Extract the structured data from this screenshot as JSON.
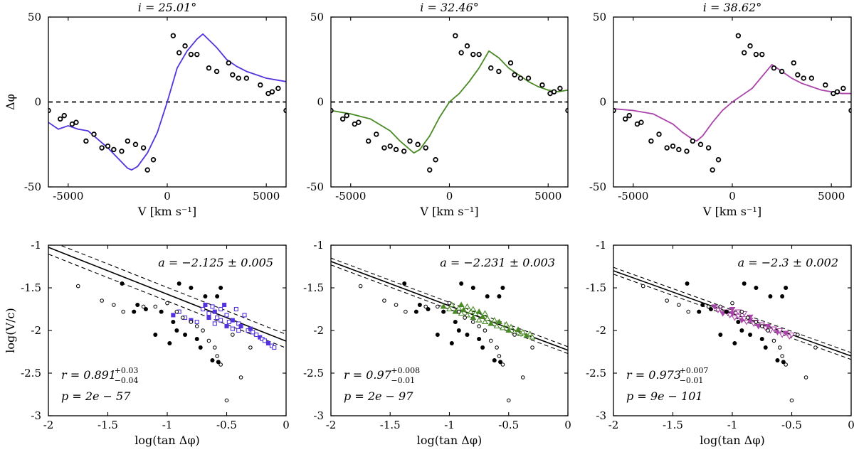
{
  "figure": {
    "name": "phase-shift-vs-velocity-panels"
  },
  "chart_data": [
    {
      "type": "line",
      "panel": "top-1",
      "title": "i = 25.01°",
      "xlabel": "V [km s⁻¹]",
      "ylabel": "Δφ",
      "xlim": [
        -6000,
        6000
      ],
      "ylim": [
        -50,
        50
      ],
      "xticks": [
        -5000,
        0,
        5000
      ],
      "yticks": [
        -50,
        0,
        50
      ],
      "xtick_labels": [
        "-5000",
        "0",
        "5000"
      ],
      "ytick_labels": [
        "-50",
        "0",
        "50"
      ],
      "zero_line": 0,
      "color": "#5533dd",
      "model": {
        "x": [
          -6000,
          -5500,
          -5000,
          -4500,
          -4000,
          -3500,
          -3000,
          -2500,
          -2000,
          -1800,
          -1500,
          -1000,
          -500,
          0,
          500,
          1000,
          1500,
          1800,
          2500,
          3000,
          3500,
          4000,
          4500,
          5000,
          5500,
          6000
        ],
        "y": [
          -12,
          -16,
          -14,
          -16,
          -17,
          -22,
          -27,
          -33,
          -39,
          -40,
          -38,
          -30,
          -18,
          0,
          20,
          30,
          37,
          40,
          32,
          25,
          21,
          18,
          16,
          14,
          13,
          12
        ]
      },
      "observed": {
        "x": [
          -6000,
          -5400,
          -5200,
          -4800,
          -4600,
          -4100,
          -3700,
          -3300,
          -3000,
          -2700,
          -2300,
          -2000,
          -1600,
          -1200,
          -1000,
          -700,
          300,
          600,
          900,
          1200,
          1500,
          2100,
          2500,
          3100,
          3300,
          3600,
          4000,
          4700,
          5100,
          5300,
          5600,
          6000
        ],
        "y": [
          -5,
          -10,
          -8,
          -13,
          -12,
          -23,
          -19,
          -27,
          -26,
          -28,
          -29,
          -23,
          -25,
          -27,
          -40,
          -34,
          39,
          29,
          33,
          28,
          28,
          20,
          18,
          23,
          16,
          14,
          14,
          10,
          5,
          6,
          8,
          -5
        ]
      }
    },
    {
      "type": "line",
      "panel": "top-2",
      "title": "i = 32.46°",
      "xlabel": "V [km s⁻¹]",
      "ylabel": "",
      "xlim": [
        -6000,
        6000
      ],
      "ylim": [
        -50,
        50
      ],
      "xticks": [
        -5000,
        0,
        5000
      ],
      "yticks": [
        -50,
        0,
        50
      ],
      "xtick_labels": [
        "-5000",
        "0",
        "5000"
      ],
      "ytick_labels": [
        "-50",
        "0",
        "50"
      ],
      "zero_line": 0,
      "color": "#4a8a25",
      "model": {
        "x": [
          -6000,
          -5000,
          -4000,
          -3000,
          -2500,
          -2000,
          -1800,
          -1500,
          -1000,
          -500,
          0,
          500,
          1000,
          1500,
          2000,
          2500,
          3000,
          3500,
          4000,
          4500,
          5000,
          5500,
          6000
        ],
        "y": [
          -5,
          -7,
          -10,
          -17,
          -23,
          -28,
          -30,
          -28,
          -20,
          -9,
          0,
          5,
          12,
          20,
          30,
          26,
          20,
          16,
          12,
          9,
          7,
          6,
          7
        ]
      },
      "observed": {
        "x": [
          -6000,
          -5400,
          -5200,
          -4800,
          -4600,
          -4100,
          -3700,
          -3300,
          -3000,
          -2700,
          -2300,
          -2000,
          -1600,
          -1200,
          -1000,
          -700,
          300,
          600,
          900,
          1200,
          1500,
          2100,
          2500,
          3100,
          3300,
          3600,
          4000,
          4700,
          5100,
          5300,
          5600,
          6000
        ],
        "y": [
          -5,
          -10,
          -8,
          -13,
          -12,
          -23,
          -19,
          -27,
          -26,
          -28,
          -29,
          -23,
          -25,
          -27,
          -40,
          -34,
          39,
          29,
          33,
          28,
          28,
          20,
          18,
          23,
          16,
          14,
          14,
          10,
          5,
          6,
          8,
          -5
        ]
      }
    },
    {
      "type": "line",
      "panel": "top-3",
      "title": "i = 38.62°",
      "xlabel": "V [km s⁻¹]",
      "ylabel": "",
      "xlim": [
        -6000,
        6000
      ],
      "ylim": [
        -50,
        50
      ],
      "xticks": [
        -5000,
        0,
        5000
      ],
      "yticks": [
        -50,
        0,
        50
      ],
      "xtick_labels": [
        "-5000",
        "0",
        "5000"
      ],
      "ytick_labels": [
        "-50",
        "0",
        "50"
      ],
      "zero_line": 0,
      "color": "#aa44aa",
      "model": {
        "x": [
          -6000,
          -5000,
          -4000,
          -3500,
          -3000,
          -2500,
          -2000,
          -1800,
          -1500,
          -1000,
          -500,
          0,
          500,
          1000,
          1500,
          2000,
          2500,
          3000,
          3500,
          4000,
          4500,
          5000,
          5500,
          6000
        ],
        "y": [
          -4,
          -5,
          -7,
          -10,
          -13,
          -18,
          -22,
          -23,
          -20,
          -12,
          -5,
          0,
          4,
          8,
          15,
          22,
          18,
          14,
          11,
          9,
          7,
          6,
          5,
          5
        ]
      },
      "observed": {
        "x": [
          -6000,
          -5400,
          -5200,
          -4800,
          -4600,
          -4100,
          -3700,
          -3300,
          -3000,
          -2700,
          -2300,
          -2000,
          -1600,
          -1200,
          -1000,
          -700,
          300,
          600,
          900,
          1200,
          1500,
          2100,
          2500,
          3100,
          3300,
          3600,
          4000,
          4700,
          5100,
          5300,
          5600,
          6000
        ],
        "y": [
          -5,
          -10,
          -8,
          -13,
          -12,
          -23,
          -19,
          -27,
          -26,
          -28,
          -29,
          -23,
          -25,
          -27,
          -40,
          -34,
          39,
          29,
          33,
          28,
          28,
          20,
          18,
          23,
          16,
          14,
          14,
          10,
          5,
          6,
          8,
          -5
        ]
      }
    },
    {
      "type": "scatter",
      "panel": "bottom-1",
      "xlabel": "log(tan Δφ)",
      "ylabel": "log(V/c)",
      "xlim": [
        -2,
        0
      ],
      "ylim": [
        -3,
        -1
      ],
      "xticks": [
        -2,
        -1.5,
        -1,
        -0.5,
        0
      ],
      "yticks": [
        -3,
        -2.5,
        -2,
        -1.5,
        -1
      ],
      "xtick_labels": [
        "-2",
        "-1.5",
        "-1",
        "-0.5",
        "0"
      ],
      "ytick_labels": [
        "-3",
        "-2.5",
        "-2",
        "-1.5",
        "-1"
      ],
      "color": "#5533dd",
      "fit": {
        "slope": -0.55,
        "intercept": -2.125,
        "band": 0.08
      },
      "annotations": {
        "a": "a = −2.125 ± 0.005",
        "r_main": "r = 0.891",
        "r_plus": "+0.03",
        "r_minus": "−0.04",
        "p": "p = 2e − 57"
      },
      "filled_points": {
        "x": [
          -1.38,
          -1.25,
          -1.18,
          -1.05,
          -0.95,
          -0.92,
          -0.85,
          -0.75,
          -0.72,
          -0.62,
          -0.58,
          -0.55,
          -0.9,
          -0.98,
          -1.1,
          -1.28,
          -0.68,
          -0.8,
          -0.57
        ],
        "y": [
          -1.45,
          -1.7,
          -1.75,
          -1.78,
          -1.9,
          -2.0,
          -2.05,
          -2.1,
          -2.2,
          -2.35,
          -1.6,
          -1.5,
          -1.45,
          -2.15,
          -2.05,
          -1.78,
          -1.6,
          -1.5,
          -2.37
        ]
      },
      "open_points": {
        "x": [
          -1.75,
          -1.55,
          -1.45,
          -1.37,
          -1.2,
          -1.1,
          -1.0,
          -0.92,
          -0.87,
          -0.8,
          -0.75,
          -0.7,
          -0.65,
          -0.6,
          -0.58,
          -0.55,
          -0.5,
          -0.45,
          -0.38,
          -0.3
        ],
        "y": [
          -1.48,
          -1.65,
          -1.7,
          -1.78,
          -1.72,
          -1.72,
          -1.68,
          -1.78,
          -1.85,
          -1.9,
          -1.95,
          -2.0,
          -2.12,
          -2.2,
          -2.3,
          -2.4,
          -2.82,
          -2.05,
          -2.55,
          -2.2
        ]
      },
      "model_points": {
        "x": [
          -0.95,
          -0.9,
          -0.85,
          -0.8,
          -0.75,
          -0.7,
          -0.68,
          -0.65,
          -0.62,
          -0.6,
          -0.58,
          -0.55,
          -0.52,
          -0.5,
          -0.48,
          -0.45,
          -0.42,
          -0.4,
          -0.38,
          -0.35,
          -0.32,
          -0.3,
          -0.28,
          -0.25,
          -0.22,
          -0.2,
          -0.18,
          -0.15,
          -0.12,
          -0.1,
          -0.65,
          -0.6,
          -0.55,
          -0.5,
          -0.45,
          -0.4
        ],
        "y": [
          -1.82,
          -1.78,
          -1.85,
          -1.88,
          -1.9,
          -1.75,
          -1.7,
          -1.8,
          -1.72,
          -1.78,
          -1.85,
          -1.75,
          -1.7,
          -1.82,
          -1.9,
          -1.88,
          -1.75,
          -1.92,
          -1.95,
          -1.82,
          -2.0,
          -1.98,
          -2.02,
          -2.05,
          -2.08,
          -2.1,
          -2.12,
          -2.15,
          -2.18,
          -2.2,
          -1.85,
          -1.92,
          -1.88,
          -1.95,
          -1.98,
          -2.0
        ]
      }
    },
    {
      "type": "scatter",
      "panel": "bottom-2",
      "xlabel": "log(tan Δφ)",
      "ylabel": "",
      "xlim": [
        -2,
        0
      ],
      "ylim": [
        -3,
        -1
      ],
      "xticks": [
        -2,
        -1.5,
        -1,
        -0.5,
        0
      ],
      "yticks": [
        -3,
        -2.5,
        -2,
        -1.5,
        -1
      ],
      "xtick_labels": [
        "-2",
        "-1.5",
        "-1",
        "-0.5",
        "0"
      ],
      "ytick_labels": [
        "-3",
        "-2.5",
        "-2",
        "-1.5",
        "-1"
      ],
      "color": "#4a8a25",
      "fit": {
        "slope": -0.52,
        "intercept": -2.231,
        "band": 0.04
      },
      "annotations": {
        "a": "a = −2.231 ± 0.003",
        "r_main": "r = 0.97",
        "r_plus": "+0.008",
        "r_minus": "−0.01",
        "p": "p = 2e − 97"
      },
      "filled_points": {
        "x": [
          -1.38,
          -1.25,
          -1.18,
          -1.05,
          -0.95,
          -0.92,
          -0.85,
          -0.75,
          -0.72,
          -0.62,
          -0.58,
          -0.55,
          -0.9,
          -0.98,
          -1.1,
          -1.28,
          -0.68,
          -0.8,
          -0.57
        ],
        "y": [
          -1.45,
          -1.7,
          -1.75,
          -1.78,
          -1.9,
          -2.0,
          -2.05,
          -2.1,
          -2.2,
          -2.35,
          -1.6,
          -1.5,
          -1.45,
          -2.15,
          -2.05,
          -1.78,
          -1.6,
          -1.5,
          -2.37
        ]
      },
      "open_points": {
        "x": [
          -1.75,
          -1.55,
          -1.45,
          -1.37,
          -1.2,
          -1.1,
          -1.0,
          -0.92,
          -0.87,
          -0.8,
          -0.75,
          -0.7,
          -0.65,
          -0.6,
          -0.58,
          -0.55,
          -0.5,
          -0.45,
          -0.38,
          -0.3
        ],
        "y": [
          -1.48,
          -1.65,
          -1.7,
          -1.78,
          -1.72,
          -1.72,
          -1.68,
          -1.78,
          -1.85,
          -1.9,
          -1.95,
          -2.0,
          -2.12,
          -2.2,
          -2.3,
          -2.4,
          -2.82,
          -2.05,
          -2.55,
          -2.2
        ]
      },
      "model_points": {
        "x": [
          -1.05,
          -1.0,
          -0.98,
          -0.95,
          -0.92,
          -0.9,
          -0.88,
          -0.85,
          -0.82,
          -0.8,
          -0.78,
          -0.75,
          -0.72,
          -0.7,
          -0.68,
          -0.65,
          -0.62,
          -0.6,
          -0.58,
          -0.55,
          -0.52,
          -0.5,
          -0.48,
          -0.45,
          -0.42,
          -0.4,
          -0.38,
          -0.35,
          -0.32,
          -0.3,
          -0.9,
          -0.85,
          -0.8,
          -0.75,
          -0.7
        ],
        "y": [
          -1.72,
          -1.75,
          -1.7,
          -1.78,
          -1.74,
          -1.8,
          -1.76,
          -1.82,
          -1.78,
          -1.85,
          -1.8,
          -1.88,
          -1.84,
          -1.9,
          -1.86,
          -1.92,
          -1.88,
          -1.95,
          -1.9,
          -1.97,
          -1.93,
          -2.0,
          -1.96,
          -2.02,
          -1.99,
          -2.04,
          -2.02,
          -2.06,
          -2.04,
          -2.08,
          -1.7,
          -1.72,
          -1.75,
          -1.78,
          -1.8
        ]
      }
    },
    {
      "type": "scatter",
      "panel": "bottom-3",
      "xlabel": "log(tan Δφ)",
      "ylabel": "",
      "xlim": [
        -2,
        0
      ],
      "ylim": [
        -3,
        -1
      ],
      "xticks": [
        -2,
        -1.5,
        -1,
        -0.5,
        0
      ],
      "yticks": [
        -3,
        -2.5,
        -2,
        -1.5,
        -1
      ],
      "xtick_labels": [
        "-2",
        "-1.5",
        "-1",
        "-0.5",
        "0"
      ],
      "ytick_labels": [
        "-3",
        "-2.5",
        "-2",
        "-1.5",
        "-1"
      ],
      "color": "#aa44aa",
      "fit": {
        "slope": -0.5,
        "intercept": -2.3,
        "band": 0.04
      },
      "annotations": {
        "a": "a = −2.3 ± 0.002",
        "r_main": "r = 0.973",
        "r_plus": "+0.007",
        "r_minus": "−0.01",
        "p": "p = 9e − 101"
      },
      "filled_points": {
        "x": [
          -1.38,
          -1.25,
          -1.18,
          -1.05,
          -0.95,
          -0.92,
          -0.85,
          -0.75,
          -0.72,
          -0.62,
          -0.58,
          -0.55,
          -0.9,
          -0.98,
          -1.1,
          -1.28,
          -0.68,
          -0.8,
          -0.57
        ],
        "y": [
          -1.45,
          -1.7,
          -1.75,
          -1.78,
          -1.9,
          -2.0,
          -2.05,
          -2.1,
          -2.2,
          -2.35,
          -1.6,
          -1.5,
          -1.45,
          -2.15,
          -2.05,
          -1.78,
          -1.6,
          -1.5,
          -2.37
        ]
      },
      "open_points": {
        "x": [
          -1.75,
          -1.55,
          -1.45,
          -1.37,
          -1.2,
          -1.1,
          -1.0,
          -0.92,
          -0.87,
          -0.8,
          -0.75,
          -0.7,
          -0.65,
          -0.6,
          -0.58,
          -0.55,
          -0.5,
          -0.45,
          -0.38,
          -0.3
        ],
        "y": [
          -1.48,
          -1.65,
          -1.7,
          -1.78,
          -1.72,
          -1.72,
          -1.68,
          -1.78,
          -1.85,
          -1.9,
          -1.95,
          -2.0,
          -2.12,
          -2.2,
          -2.3,
          -2.4,
          -2.82,
          -2.05,
          -2.55,
          -2.2
        ]
      },
      "model_points": {
        "x": [
          -1.15,
          -1.12,
          -1.1,
          -1.08,
          -1.05,
          -1.02,
          -1.0,
          -0.98,
          -0.95,
          -0.92,
          -0.9,
          -0.88,
          -0.85,
          -0.82,
          -0.8,
          -0.78,
          -0.75,
          -0.72,
          -0.7,
          -0.68,
          -0.65,
          -0.62,
          -0.6,
          -0.58,
          -0.55,
          -0.52,
          -0.5,
          -1.0,
          -0.95,
          -0.9,
          -0.85
        ],
        "y": [
          -1.72,
          -1.76,
          -1.74,
          -1.8,
          -1.78,
          -1.82,
          -1.8,
          -1.85,
          -1.83,
          -1.88,
          -1.86,
          -1.9,
          -1.88,
          -1.92,
          -1.9,
          -1.95,
          -1.93,
          -1.97,
          -1.95,
          -2.0,
          -1.98,
          -2.02,
          -2.0,
          -2.05,
          -2.03,
          -2.07,
          -2.05,
          -1.75,
          -1.78,
          -1.8,
          -1.84
        ]
      }
    }
  ]
}
